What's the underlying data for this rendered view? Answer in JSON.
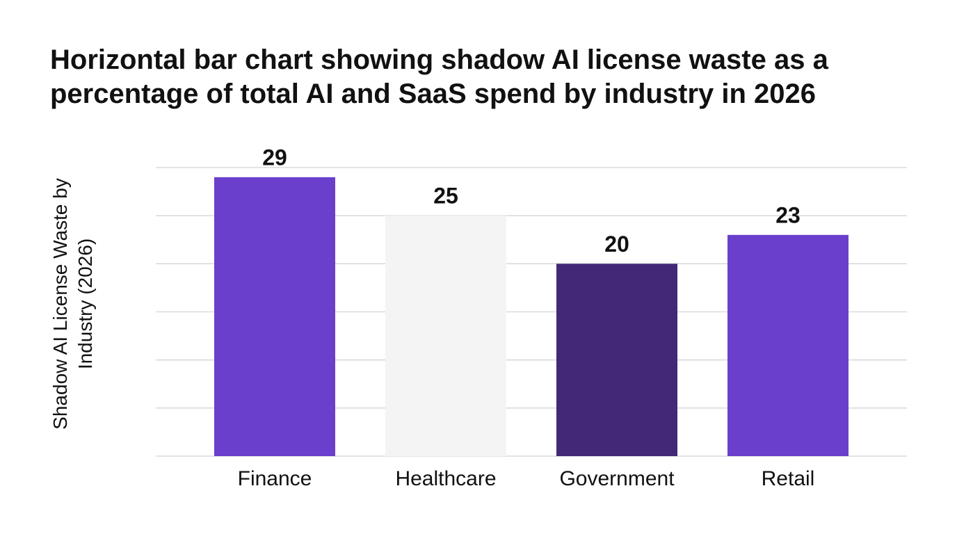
{
  "chart_data": {
    "type": "bar",
    "title": "Horizontal bar chart showing shadow AI license waste as a percentage of total AI and SaaS spend by industry in 2026",
    "y_label": "Shadow AI License Waste by Industry (2026)",
    "categories": [
      "Finance",
      "Healthcare",
      "Government",
      "Retail"
    ],
    "values": [
      29,
      25,
      20,
      23
    ],
    "colors": [
      "#6a3fcc",
      "#f4f4f4",
      "#432878",
      "#6a3fcc"
    ],
    "ylim": [
      0,
      30
    ],
    "yticks": [
      0,
      5,
      10,
      15,
      20,
      25,
      30
    ],
    "grid": true
  }
}
